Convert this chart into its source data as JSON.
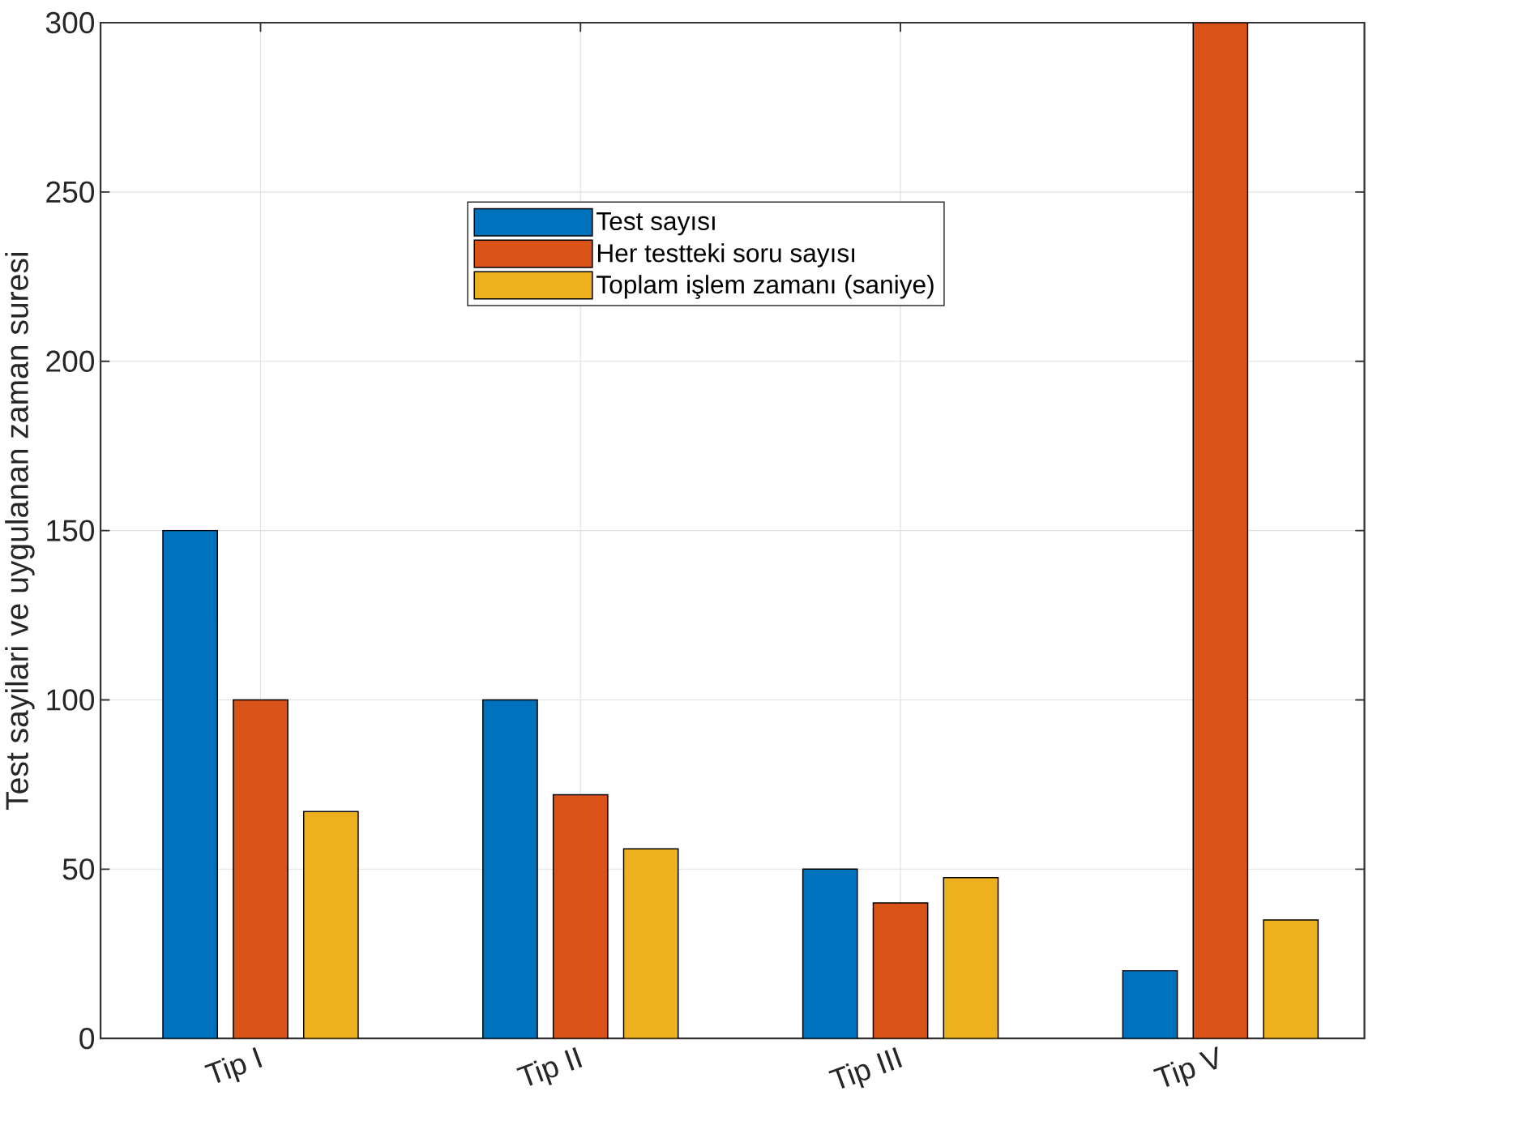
{
  "chart_data": {
    "type": "bar",
    "ylabel": "Test sayilari ve uygulanan zaman suresi",
    "categories": [
      "Tip I",
      "Tip II",
      "Tip III",
      "Tip V"
    ],
    "series": [
      {
        "name": "Test sayısı",
        "color": "#0072bd",
        "values": [
          150,
          100,
          50,
          20
        ]
      },
      {
        "name": "Her testteki soru sayısı",
        "color": "#d95319",
        "values": [
          100,
          72,
          40,
          300
        ]
      },
      {
        "name": "Toplam işlem zamanı (saniye)",
        "color": "#edb120",
        "values": [
          67,
          56,
          47.5,
          35
        ]
      }
    ],
    "ylim": [
      0,
      300
    ],
    "yticks": [
      0,
      50,
      100,
      150,
      200,
      250,
      300
    ],
    "grid": true,
    "legend": "top"
  }
}
